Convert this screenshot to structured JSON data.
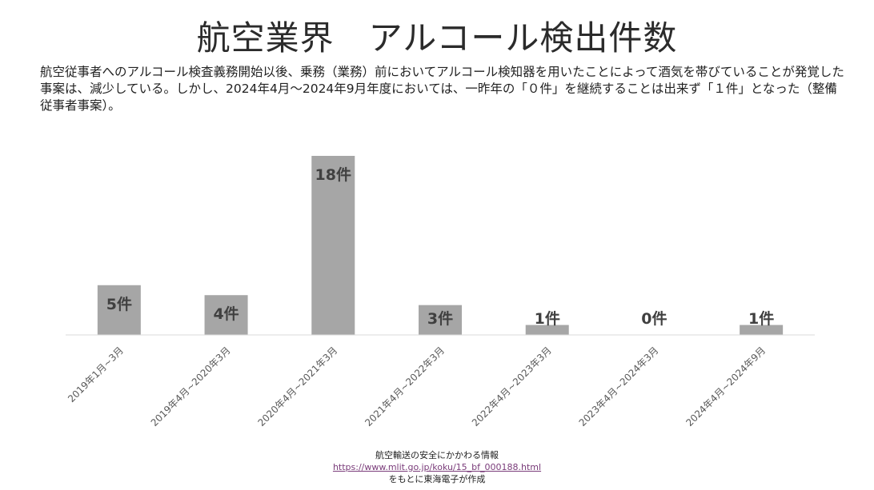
{
  "header": {
    "title": "航空業界　アルコール検出件数",
    "description": "航空従事者へのアルコール検査義務開始以後、乗務（業務）前においてアルコール検知器を用いたことによって酒気を帯びていることが発覚した事案は、減少している。しかし、2024年4月～2024年9月年度においては、一昨年の「０件」を継続することは出来ず「１件」となった（整備従事者事案）。"
  },
  "chart_data": {
    "type": "bar",
    "categories": [
      "2019年1月~3月",
      "2019年4月~2020年3月",
      "2020年4月~2021年3月",
      "2021年4月~2022年3月",
      "2022年4月~2023年3月",
      "2023年4月~2024年3月",
      "2024年4月~2024年9月"
    ],
    "values": [
      5,
      4,
      18,
      3,
      1,
      0,
      1
    ],
    "data_labels": [
      "5件",
      "4件",
      "18件",
      "3件",
      "1件",
      "0件",
      "1件"
    ],
    "ylim": [
      0,
      18
    ],
    "grid": false,
    "bar_color": "#a6a6a6",
    "label_color": "#404040"
  },
  "source": {
    "line1": "航空輸送の安全にかかわる情報",
    "url": "https://www.mlit.go.jp/koku/15_bf_000188.html",
    "line3": "をもとに東海電子が作成"
  }
}
